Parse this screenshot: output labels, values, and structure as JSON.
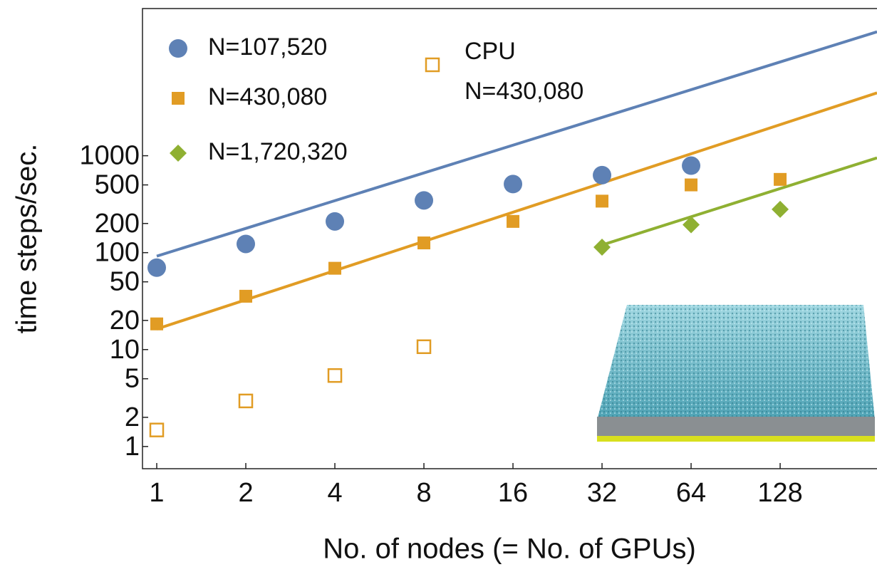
{
  "chart_data": {
    "type": "scatter",
    "xlabel": "No. of nodes (= No. of GPUs)",
    "ylabel": "time steps/sec.",
    "xscale": "log2",
    "yscale": "log",
    "xlim": [
      0.895,
      272
    ],
    "ylim": [
      0.59,
      33000
    ],
    "xticks": [
      1,
      2,
      4,
      8,
      16,
      32,
      64,
      128
    ],
    "yticks": [
      1,
      2,
      5,
      10,
      20,
      50,
      100,
      200,
      500,
      1000
    ],
    "series": [
      {
        "name": "N=107,520",
        "color": "#5e81b5",
        "marker": "circle",
        "x": [
          1,
          2,
          4,
          8,
          16,
          32,
          64
        ],
        "values": [
          70,
          123,
          210,
          346,
          510,
          630,
          790
        ]
      },
      {
        "name": "N=430,080",
        "color": "#e19c24",
        "marker": "square",
        "x": [
          1,
          2,
          4,
          8,
          16,
          32,
          64,
          128
        ],
        "values": [
          18.4,
          35.5,
          69,
          126,
          210,
          340,
          500,
          570
        ]
      },
      {
        "name": "N=1,720,320",
        "color": "#8fb032",
        "marker": "diamond",
        "x": [
          32,
          64,
          128
        ],
        "values": [
          114,
          194,
          280
        ]
      },
      {
        "name": "CPU N=430,080",
        "color": "#e19c24",
        "marker": "open-square",
        "x": [
          1,
          2,
          4,
          8
        ],
        "values": [
          1.48,
          2.95,
          5.4,
          10.7
        ]
      }
    ],
    "fit_lines": [
      {
        "color": "#5e81b5",
        "x": [
          1,
          272
        ],
        "values": [
          92,
          19000
        ]
      },
      {
        "color": "#e19c24",
        "x": [
          1,
          272
        ],
        "values": [
          16.3,
          4450
        ]
      },
      {
        "color": "#8fb032",
        "x": [
          32,
          272
        ],
        "values": [
          120,
          950
        ]
      }
    ]
  }
}
